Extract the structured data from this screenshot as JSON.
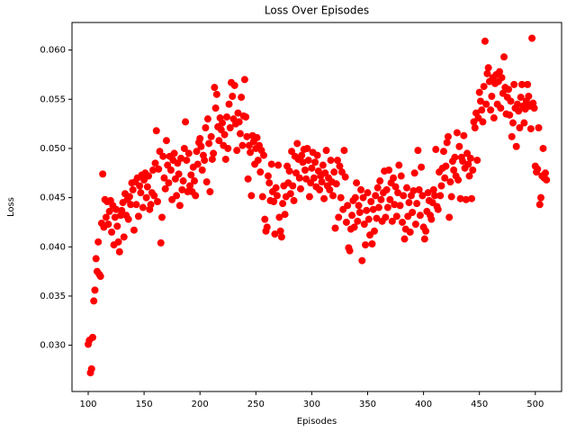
{
  "chart_data": {
    "type": "scatter",
    "title": "Loss Over Episodes",
    "x_label": "Episodes",
    "y_label": "Loss",
    "xlim": [
      85.5,
      523.5
    ],
    "ylim": [
      0.0253,
      0.0628
    ],
    "xticks": [
      100,
      150,
      200,
      250,
      300,
      350,
      400,
      450,
      500
    ],
    "yticks": [
      {
        "value": 0.03,
        "label": "0.030"
      },
      {
        "value": 0.035,
        "label": "0.035"
      },
      {
        "value": 0.04,
        "label": "0.040"
      },
      {
        "value": 0.045,
        "label": "0.045"
      },
      {
        "value": 0.05,
        "label": "0.050"
      },
      {
        "value": 0.055,
        "label": "0.055"
      },
      {
        "value": 0.06,
        "label": "0.060"
      }
    ],
    "grid": false,
    "color": "#ff0000",
    "x": [
      100,
      101,
      102,
      103,
      104,
      105,
      106,
      107,
      108,
      109,
      110,
      111,
      112,
      113,
      114,
      115,
      116,
      117,
      118,
      119,
      120,
      121,
      122,
      123,
      124,
      125,
      126,
      127,
      128,
      129,
      130,
      131,
      132,
      133,
      134,
      135,
      136,
      137,
      138,
      139,
      140,
      141,
      142,
      143,
      144,
      145,
      146,
      147,
      148,
      149,
      150,
      151,
      152,
      153,
      154,
      155,
      156,
      157,
      158,
      159,
      160,
      161,
      162,
      163,
      164,
      165,
      166,
      167,
      168,
      169,
      170,
      171,
      172,
      173,
      174,
      175,
      176,
      177,
      178,
      179,
      180,
      181,
      182,
      183,
      184,
      185,
      186,
      187,
      188,
      189,
      190,
      191,
      192,
      193,
      194,
      195,
      196,
      197,
      198,
      199,
      200,
      201,
      202,
      203,
      204,
      205,
      206,
      207,
      208,
      209,
      210,
      211,
      212,
      213,
      214,
      215,
      216,
      217,
      218,
      219,
      220,
      221,
      222,
      223,
      224,
      225,
      226,
      227,
      228,
      229,
      230,
      231,
      232,
      233,
      234,
      235,
      236,
      237,
      238,
      239,
      240,
      241,
      242,
      243,
      244,
      245,
      246,
      247,
      248,
      249,
      250,
      251,
      252,
      253,
      254,
      255,
      256,
      257,
      258,
      259,
      260,
      261,
      262,
      263,
      264,
      265,
      266,
      267,
      268,
      269,
      270,
      271,
      272,
      273,
      274,
      275,
      276,
      277,
      278,
      279,
      280,
      281,
      282,
      283,
      284,
      285,
      286,
      287,
      288,
      289,
      290,
      291,
      292,
      293,
      294,
      295,
      296,
      297,
      298,
      299,
      300,
      301,
      302,
      303,
      304,
      305,
      306,
      307,
      308,
      309,
      310,
      311,
      312,
      313,
      314,
      315,
      316,
      317,
      318,
      319,
      320,
      321,
      322,
      323,
      324,
      325,
      326,
      327,
      328,
      329,
      330,
      331,
      332,
      333,
      334,
      335,
      336,
      337,
      338,
      339,
      340,
      341,
      342,
      343,
      344,
      345,
      346,
      347,
      348,
      349,
      350,
      351,
      352,
      353,
      354,
      355,
      356,
      357,
      358,
      359,
      360,
      361,
      362,
      363,
      364,
      365,
      366,
      367,
      368,
      369,
      370,
      371,
      372,
      373,
      374,
      375,
      376,
      377,
      378,
      379,
      380,
      381,
      382,
      383,
      384,
      385,
      386,
      387,
      388,
      389,
      390,
      391,
      392,
      393,
      394,
      395,
      396,
      397,
      398,
      399,
      400,
      401,
      402,
      403,
      404,
      405,
      406,
      407,
      408,
      409,
      410,
      411,
      412,
      413,
      414,
      415,
      416,
      417,
      418,
      419,
      420,
      421,
      422,
      423,
      424,
      425,
      426,
      427,
      428,
      429,
      430,
      431,
      432,
      433,
      434,
      435,
      436,
      437,
      438,
      439,
      440,
      441,
      442,
      443,
      444,
      445,
      446,
      447,
      448,
      449,
      450,
      451,
      452,
      453,
      454,
      455,
      456,
      457,
      458,
      459,
      460,
      461,
      462,
      463,
      464,
      465,
      466,
      467,
      468,
      469,
      470,
      471,
      472,
      473,
      474,
      475,
      476,
      477,
      478,
      479,
      480,
      481,
      482,
      483,
      484,
      485,
      486,
      487,
      488,
      489,
      490,
      491,
      492,
      493,
      494,
      495,
      496,
      497,
      498,
      499,
      500,
      501,
      502,
      503,
      504,
      505,
      506,
      507,
      508,
      509,
      510
    ],
    "values": [
      0.0301,
      0.0305,
      0.0272,
      0.0276,
      0.0308,
      0.0345,
      0.0356,
      0.0388,
      0.0375,
      0.0405,
      0.0372,
      0.037,
      0.0424,
      0.0474,
      0.042,
      0.0448,
      0.043,
      0.0446,
      0.0423,
      0.0436,
      0.0447,
      0.0415,
      0.0442,
      0.0402,
      0.043,
      0.0438,
      0.0421,
      0.0405,
      0.0395,
      0.0432,
      0.0437,
      0.0445,
      0.041,
      0.0454,
      0.0432,
      0.0448,
      0.0428,
      0.0451,
      0.0443,
      0.0465,
      0.0458,
      0.0417,
      0.0466,
      0.0443,
      0.047,
      0.0431,
      0.0462,
      0.0455,
      0.0473,
      0.044,
      0.0468,
      0.0475,
      0.045,
      0.0461,
      0.0472,
      0.0438,
      0.0443,
      0.0455,
      0.0478,
      0.0452,
      0.0485,
      0.0518,
      0.0446,
      0.0479,
      0.0497,
      0.0404,
      0.043,
      0.0492,
      0.047,
      0.0459,
      0.0508,
      0.0483,
      0.0465,
      0.0492,
      0.0478,
      0.0448,
      0.0488,
      0.0495,
      0.0469,
      0.0452,
      0.0485,
      0.0474,
      0.0442,
      0.049,
      0.0458,
      0.0467,
      0.05,
      0.0527,
      0.0488,
      0.0456,
      0.0495,
      0.0462,
      0.0473,
      0.0456,
      0.0481,
      0.0467,
      0.0452,
      0.0497,
      0.0484,
      0.0506,
      0.051,
      0.0502,
      0.0478,
      0.0493,
      0.0488,
      0.0521,
      0.0466,
      0.053,
      0.0505,
      0.0456,
      0.0512,
      0.0489,
      0.0495,
      0.0562,
      0.0541,
      0.0555,
      0.0522,
      0.0508,
      0.0531,
      0.0519,
      0.0526,
      0.0503,
      0.0514,
      0.0489,
      0.0532,
      0.05,
      0.0545,
      0.0521,
      0.0567,
      0.0553,
      0.053,
      0.0564,
      0.0525,
      0.0498,
      0.0536,
      0.0527,
      0.0515,
      0.0552,
      0.0503,
      0.0533,
      0.057,
      0.0532,
      0.0512,
      0.0469,
      0.0503,
      0.0496,
      0.0452,
      0.0513,
      0.0507,
      0.0484,
      0.05,
      0.0511,
      0.0488,
      0.0503,
      0.0476,
      0.0498,
      0.0451,
      0.0493,
      0.0428,
      0.0416,
      0.042,
      0.0472,
      0.0465,
      0.0447,
      0.0484,
      0.0456,
      0.0446,
      0.0413,
      0.046,
      0.0452,
      0.0483,
      0.043,
      0.0416,
      0.041,
      0.0444,
      0.0462,
      0.0433,
      0.0451,
      0.0482,
      0.0465,
      0.0477,
      0.0454,
      0.0497,
      0.0462,
      0.0447,
      0.0492,
      0.0475,
      0.0505,
      0.0489,
      0.047,
      0.0459,
      0.0493,
      0.0486,
      0.0499,
      0.0478,
      0.0469,
      0.05,
      0.0488,
      0.0451,
      0.0465,
      0.048,
      0.0496,
      0.047,
      0.0486,
      0.0461,
      0.0493,
      0.0477,
      0.0458,
      0.0472,
      0.0466,
      0.0483,
      0.0449,
      0.0475,
      0.0498,
      0.0462,
      0.047,
      0.0458,
      0.0488,
      0.0466,
      0.0452,
      0.0476,
      0.0419,
      0.0464,
      0.0488,
      0.043,
      0.0482,
      0.045,
      0.0476,
      0.0438,
      0.0498,
      0.0471,
      0.0425,
      0.0442,
      0.0399,
      0.0396,
      0.0418,
      0.0432,
      0.0447,
      0.042,
      0.045,
      0.0465,
      0.0426,
      0.0442,
      0.0435,
      0.0458,
      0.0386,
      0.045,
      0.0423,
      0.0402,
      0.0437,
      0.0455,
      0.0428,
      0.0412,
      0.0446,
      0.0403,
      0.0438,
      0.0416,
      0.0452,
      0.0429,
      0.046,
      0.044,
      0.0467,
      0.0448,
      0.0426,
      0.0455,
      0.0477,
      0.043,
      0.0458,
      0.044,
      0.0478,
      0.0448,
      0.0465,
      0.0426,
      0.047,
      0.0443,
      0.0461,
      0.0431,
      0.0455,
      0.0483,
      0.0442,
      0.0472,
      0.0425,
      0.0452,
      0.0408,
      0.0418,
      0.046,
      0.0431,
      0.0445,
      0.0415,
      0.0452,
      0.0435,
      0.0457,
      0.0475,
      0.0423,
      0.0444,
      0.0498,
      0.0458,
      0.0432,
      0.0481,
      0.0452,
      0.042,
      0.0408,
      0.0416,
      0.0436,
      0.0455,
      0.0447,
      0.0432,
      0.0428,
      0.0445,
      0.0458,
      0.0452,
      0.0499,
      0.0441,
      0.0438,
      0.0476,
      0.0452,
      0.0462,
      0.048,
      0.0497,
      0.047,
      0.0482,
      0.0506,
      0.0512,
      0.043,
      0.0466,
      0.0451,
      0.0487,
      0.0478,
      0.0491,
      0.0472,
      0.0516,
      0.0468,
      0.0502,
      0.0449,
      0.0491,
      0.0487,
      0.0513,
      0.048,
      0.0448,
      0.0495,
      0.0484,
      0.0472,
      0.049,
      0.0449,
      0.0478,
      0.0527,
      0.0521,
      0.0536,
      0.0488,
      0.0531,
      0.0557,
      0.0548,
      0.0539,
      0.0527,
      0.0563,
      0.0609,
      0.0545,
      0.0576,
      0.0582,
      0.0568,
      0.0539,
      0.0553,
      0.0572,
      0.0531,
      0.0566,
      0.0575,
      0.0545,
      0.0568,
      0.0578,
      0.0541,
      0.0572,
      0.0556,
      0.0593,
      0.0562,
      0.0535,
      0.0552,
      0.056,
      0.0534,
      0.0548,
      0.0512,
      0.0526,
      0.0565,
      0.0541,
      0.0502,
      0.0545,
      0.0538,
      0.0521,
      0.0552,
      0.0565,
      0.0543,
      0.0526,
      0.054,
      0.0548,
      0.0565,
      0.0553,
      0.0543,
      0.052,
      0.0612,
      0.0546,
      0.0541,
      0.0482,
      0.0476,
      0.0479,
      0.0521,
      0.0443,
      0.045,
      0.0472,
      0.05,
      0.047,
      0.0475,
      0.0468
    ]
  }
}
